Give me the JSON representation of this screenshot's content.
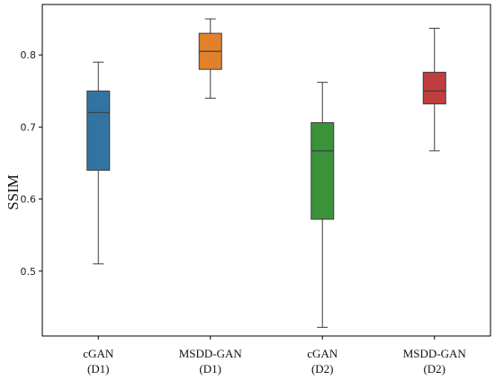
{
  "chart_data": {
    "type": "box",
    "ylabel": "SSIM",
    "xlabel": "",
    "ylim": [
      0.41,
      0.87
    ],
    "yticks": [
      0.5,
      0.6,
      0.7,
      0.8
    ],
    "ytick_labels": [
      "0.5",
      "0.6",
      "0.7",
      "0.8"
    ],
    "grid": false,
    "categories": [
      {
        "line1": "cGAN",
        "line2": "(D1)"
      },
      {
        "line1": "MSDD-GAN",
        "line2": "(D1)"
      },
      {
        "line1": "cGAN",
        "line2": "(D2)"
      },
      {
        "line1": "MSDD-GAN",
        "line2": "(D2)"
      }
    ],
    "boxes": [
      {
        "min": 0.51,
        "q1": 0.64,
        "median": 0.72,
        "q3": 0.75,
        "max": 0.79,
        "color": "#3274a1"
      },
      {
        "min": 0.74,
        "q1": 0.78,
        "median": 0.805,
        "q3": 0.83,
        "max": 0.85,
        "color": "#e1812c"
      },
      {
        "min": 0.422,
        "q1": 0.572,
        "median": 0.667,
        "q3": 0.706,
        "max": 0.762,
        "color": "#3a923a"
      },
      {
        "min": 0.667,
        "q1": 0.732,
        "median": 0.75,
        "q3": 0.776,
        "max": 0.837,
        "color": "#c03d3e"
      }
    ]
  }
}
